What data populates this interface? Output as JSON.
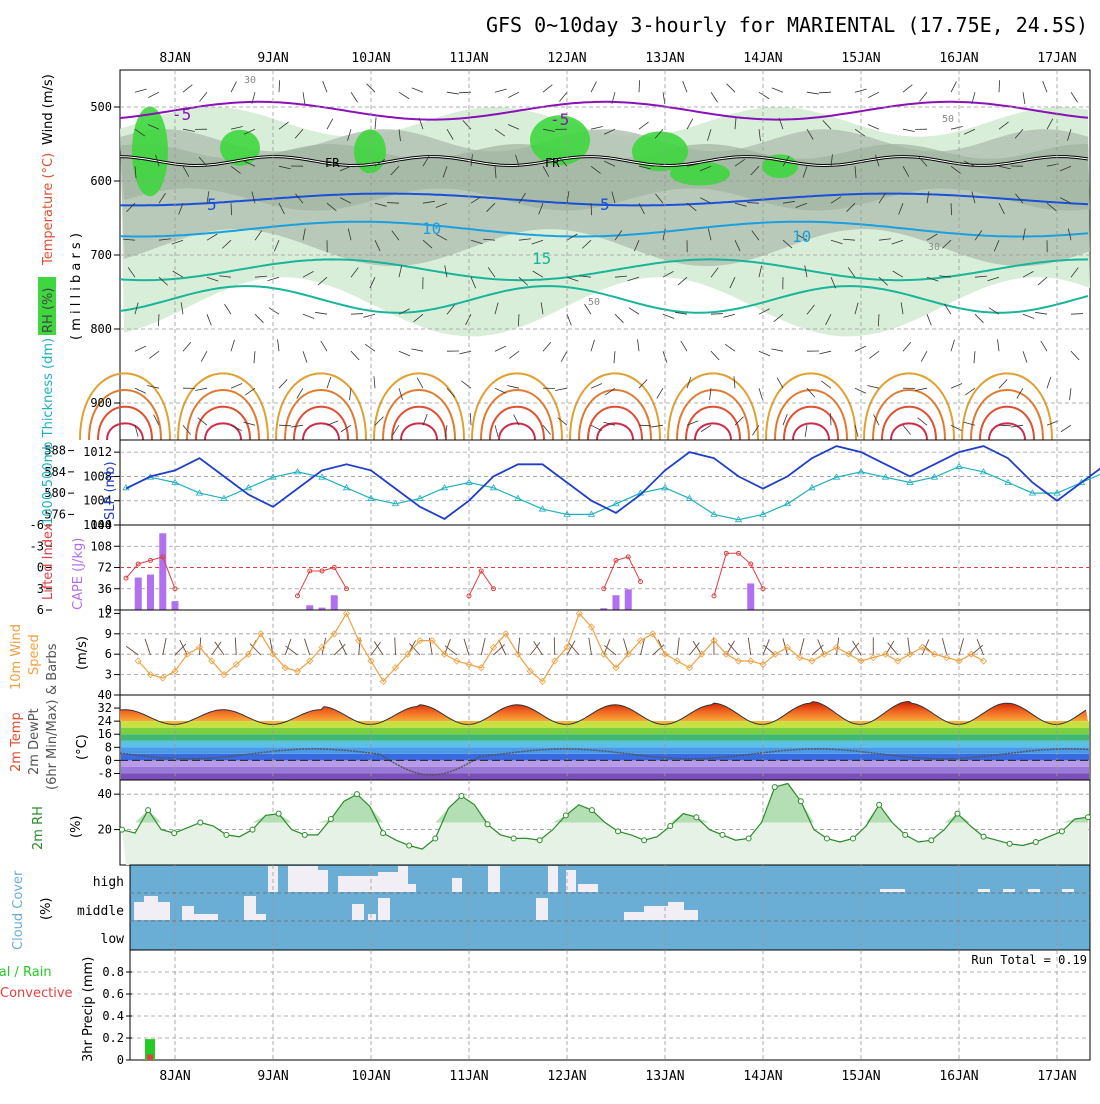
{
  "title": "GFS 0~10day 3-hourly for MARIENTAL (17.75E, 24.5S)",
  "dates": [
    "8JAN",
    "9JAN",
    "10JAN",
    "11JAN",
    "12JAN",
    "13JAN",
    "14JAN",
    "15JAN",
    "16JAN",
    "17JAN"
  ],
  "colors": {
    "rh_green": "#3fd63f",
    "rh_light": "#d9eed9",
    "rh_gray": "#b3c2b3",
    "temp_purple": "#8a10b8",
    "temp_blue": "#1a4fd8",
    "temp_cyan": "#1aa0e0",
    "temp_teal": "#18b59a",
    "temp_orange": "#e0a030",
    "temp_red": "#e05030",
    "slp_line": "#1f3fc8",
    "thick_line": "#20b0c0",
    "cape_bar": "#b070f0",
    "li_line": "#e04040",
    "wind_speed": "#f0a040",
    "rh2m_fill": "#a8d8a8",
    "rh2m_line": "#2a8a2a",
    "cloud_bg": "#6aaed6",
    "cloud_fill": "#f2eef6",
    "precip_total": "#22cc22",
    "precip_conv": "#e04040"
  },
  "panels": {
    "upper_air": {
      "ylabel_rh": "RH (%)",
      "ylabel_temp": "Temperature (°C)",
      "ylabel_wind": "Wind (m/s)",
      "ylabel_unit": "( m i l l i b a r s )",
      "yticks": [
        "500",
        "600",
        "700",
        "800",
        "900"
      ],
      "contour_labels": [
        "-5",
        "-5",
        "FR",
        "FR",
        "5",
        "5",
        "10",
        "10",
        "15",
        "30",
        "30",
        "50",
        "50"
      ]
    },
    "slp": {
      "ylabel_left": "1000-500mb Thickness (dm)",
      "ylabel_right": "SLP (mb)",
      "thick_ticks": [
        "588",
        "584",
        "580",
        "576"
      ],
      "slp_ticks": [
        "1012",
        "1008",
        "1004",
        "1000"
      ]
    },
    "cape": {
      "ylabel_left": "Lifted Index",
      "ylabel_right": "CAPE (J/kg)",
      "li_ticks": [
        "-6",
        "-3",
        "0",
        "3",
        "6"
      ],
      "cape_ticks": [
        "144",
        "108",
        "72",
        "36",
        "0"
      ]
    },
    "wind10": {
      "ylabel_a": "10m Wind",
      "ylabel_b": "Speed",
      "ylabel_c": "& Barbs",
      "ylabel_unit": "(m/s)",
      "yticks": [
        "12",
        "9",
        "6",
        "3"
      ]
    },
    "temp2m": {
      "ylabel_a": "2m Temp",
      "ylabel_b": "2m DewPt",
      "ylabel_c": "(6hr Min/Max)",
      "ylabel_unit": "(°C)",
      "yticks": [
        "40",
        "32",
        "24",
        "16",
        "8",
        "0",
        "-8"
      ]
    },
    "rh2m": {
      "ylabel": "2m RH",
      "ylabel_unit": "(%)",
      "yticks": [
        "40",
        "20"
      ]
    },
    "cloud": {
      "ylabel": "Cloud Cover",
      "ylabel_unit": "(%)",
      "levels": [
        "high",
        "middle",
        "low"
      ]
    },
    "precip": {
      "ylabel_total": "Total / Rain",
      "ylabel_conv": "Convective",
      "ylabel": "3hr Precip (mm)",
      "yticks": [
        "0.8",
        "0.6",
        "0.4",
        "0.2",
        "0"
      ],
      "run_total": "Run Total = 0.19"
    }
  },
  "chart_data": [
    {
      "type": "line",
      "name": "slp",
      "ylabel": "SLP (mb)",
      "x_start": "7JAN 12Z",
      "x_step_hours": 6,
      "values": [
        1006,
        1008,
        1009,
        1011,
        1008,
        1005,
        1003,
        1006,
        1009,
        1010,
        1009,
        1006,
        1003,
        1001,
        1004,
        1008,
        1010,
        1010,
        1007,
        1004,
        1002,
        1005,
        1009,
        1012,
        1011,
        1008,
        1006,
        1008,
        1011,
        1013,
        1012,
        1010,
        1008,
        1010,
        1012,
        1013,
        1011,
        1007,
        1004,
        1007,
        1010,
        1012,
        1011,
        1008,
        1005,
        1006,
        1009,
        1011
      ],
      "ylim": [
        1000,
        1014
      ]
    },
    {
      "type": "line",
      "name": "thickness",
      "ylabel": "1000-500mb Thickness (dm)",
      "values": [
        581,
        583,
        582,
        580,
        579,
        581,
        583,
        584,
        583,
        581,
        579,
        578,
        579,
        581,
        582,
        581,
        579,
        577,
        576,
        576,
        578,
        580,
        581,
        579,
        576,
        575,
        576,
        578,
        581,
        583,
        584,
        583,
        582,
        583,
        585,
        584,
        582,
        580,
        580,
        582,
        584,
        586,
        585,
        583,
        582,
        584,
        587,
        586
      ],
      "ylim": [
        574,
        590
      ]
    },
    {
      "type": "bar",
      "name": "cape",
      "ylabel": "CAPE (J/kg)",
      "x_hours": [
        3,
        6,
        9,
        12,
        45,
        48,
        51,
        117,
        120,
        123,
        153
      ],
      "values": [
        55,
        60,
        130,
        15,
        8,
        4,
        25,
        3,
        25,
        35,
        45
      ],
      "ylim": [
        0,
        144
      ]
    },
    {
      "type": "line",
      "name": "lifted_index",
      "ylabel": "Lifted Index",
      "ylim": [
        6,
        -6
      ],
      "segments": [
        [
          0,
          3,
          6,
          9,
          12
        ],
        [
          42,
          45,
          48,
          51,
          54
        ],
        [
          84,
          87,
          90
        ],
        [
          117,
          120,
          123,
          126
        ],
        [
          144,
          147,
          150,
          153,
          156
        ]
      ],
      "values": [
        [
          1.5,
          -0.5,
          -1,
          -1.5,
          3
        ],
        [
          4,
          0.5,
          0.5,
          0,
          3
        ],
        [
          4,
          0.5,
          3
        ],
        [
          3,
          -1,
          -1.5,
          2
        ],
        [
          4,
          -2,
          -2,
          -0.5,
          3
        ]
      ]
    },
    {
      "type": "line",
      "name": "wind_speed_10m",
      "ylabel": "Speed (m/s)",
      "x_step_hours": 3,
      "values": [
        5,
        3,
        2.5,
        3.5,
        6,
        7,
        5,
        3,
        4.5,
        6,
        9,
        6,
        4,
        3.5,
        5,
        7,
        9,
        12,
        8,
        5,
        2,
        4,
        6,
        8,
        8,
        6,
        5,
        4.5,
        4,
        7,
        9,
        6,
        3.5,
        2,
        5,
        7,
        12,
        10,
        6,
        4,
        6,
        8,
        9,
        6,
        5,
        4,
        6,
        8,
        6,
        5,
        5,
        4.5,
        6,
        7,
        5.5,
        5,
        6,
        7,
        6,
        5,
        5.5,
        6,
        5,
        6,
        7,
        6,
        5.5,
        5,
        6,
        5
      ],
      "ylim": [
        0,
        12
      ]
    },
    {
      "type": "area",
      "name": "temp_2m",
      "ylabel": "2m Temp (°C)",
      "values_max": [
        31,
        33,
        34,
        34,
        34,
        35,
        36,
        35,
        35
      ],
      "values_min": [
        21,
        21,
        20,
        21,
        21,
        21,
        21,
        21,
        22
      ],
      "dewpoint_range": [
        -4,
        10
      ],
      "ylim": [
        -12,
        40
      ]
    },
    {
      "type": "area",
      "name": "rh_2m",
      "ylabel": "2m RH (%)",
      "x_step_hours": 6,
      "values": [
        20,
        18,
        31,
        20,
        18,
        21,
        24,
        22,
        17,
        16,
        20,
        28,
        29,
        20,
        17,
        17,
        26,
        36,
        40,
        33,
        18,
        14,
        11,
        9,
        15,
        32,
        39,
        34,
        23,
        17,
        15,
        15,
        14,
        20,
        28,
        34,
        31,
        24,
        19,
        17,
        14,
        16,
        22,
        29,
        27,
        20,
        17,
        14,
        15,
        24,
        44,
        46,
        36,
        20,
        15,
        13,
        15,
        22,
        34,
        24,
        17,
        13,
        14,
        20,
        29,
        22,
        16,
        14,
        12,
        11,
        13,
        16,
        19,
        26,
        27
      ],
      "ylim": [
        0,
        48
      ]
    },
    {
      "type": "bar",
      "name": "precip_3hr",
      "ylabel": "3hr Precip (mm)",
      "x_hours": [
        6
      ],
      "values_total": [
        0.19
      ],
      "values_convective": [
        0.05
      ],
      "ylim": [
        0,
        1
      ]
    }
  ]
}
